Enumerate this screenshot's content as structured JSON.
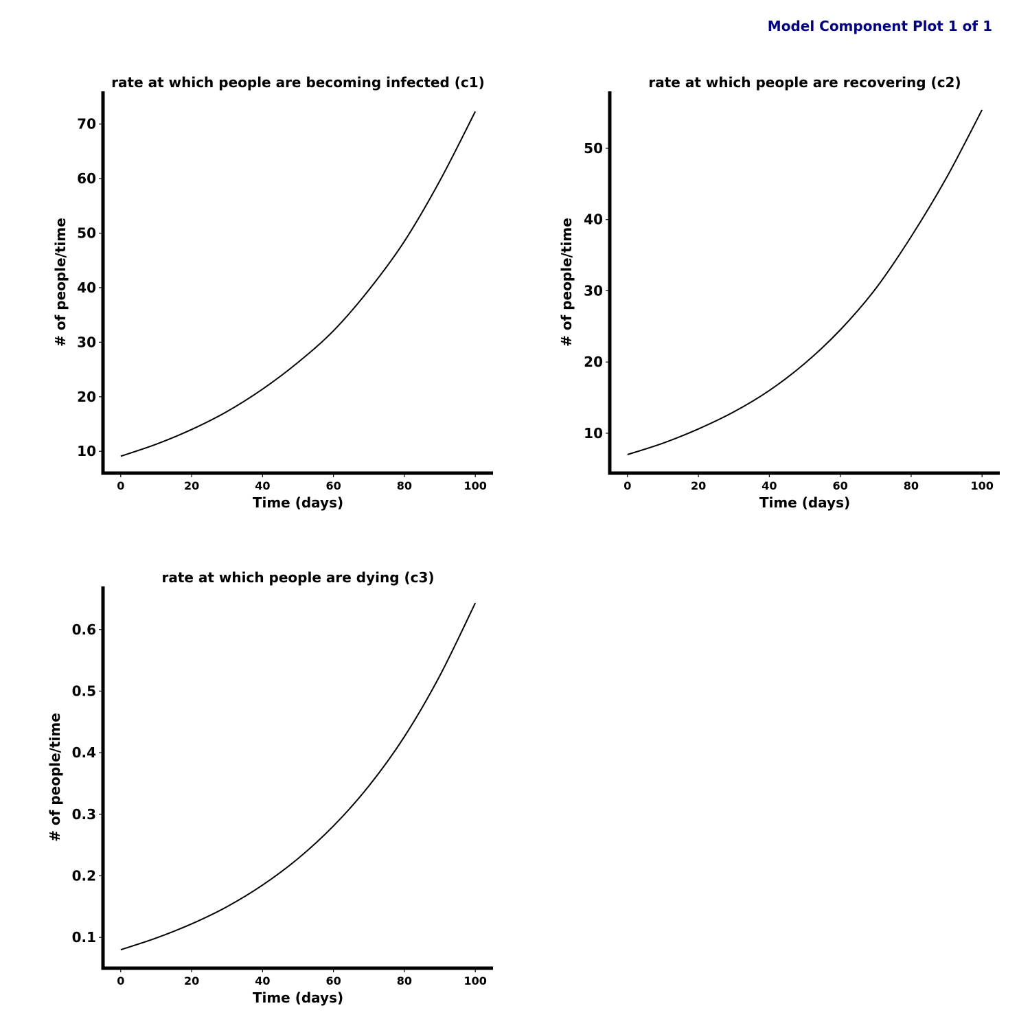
{
  "page": {
    "heading": "Model Component Plot 1 of 1",
    "heading_color": "#000080"
  },
  "chart_data": [
    {
      "type": "line",
      "title": "rate at which people are becoming infected (c1)",
      "xlabel": "Time (days)",
      "ylabel": "# of people/time",
      "xlim": [
        -5,
        105
      ],
      "ylim": [
        6,
        76
      ],
      "xticks": [
        0,
        20,
        40,
        60,
        80,
        100
      ],
      "yticks": [
        10,
        20,
        30,
        40,
        50,
        60,
        70
      ],
      "xtick_labels": [
        "0",
        "20",
        "40",
        "60",
        "80",
        "100"
      ],
      "ytick_labels": [
        "10",
        "20",
        "30",
        "40",
        "50",
        "60",
        "70"
      ],
      "grid": false,
      "legend": "none",
      "line_color": "#000000",
      "series": [
        {
          "x": [
            0,
            10,
            20,
            30,
            40,
            50,
            60,
            70,
            80,
            90,
            100
          ],
          "values": [
            9.1,
            11.3,
            14.0,
            17.3,
            21.4,
            26.3,
            32.1,
            39.6,
            48.5,
            59.6,
            72.3
          ]
        }
      ]
    },
    {
      "type": "line",
      "title": "rate at which people are recovering (c2)",
      "xlabel": "Time (days)",
      "ylabel": "# of people/time",
      "xlim": [
        -5,
        105
      ],
      "ylim": [
        4.4,
        58
      ],
      "xticks": [
        0,
        20,
        40,
        60,
        80,
        100
      ],
      "yticks": [
        10,
        20,
        30,
        40,
        50
      ],
      "xtick_labels": [
        "0",
        "20",
        "40",
        "60",
        "80",
        "100"
      ],
      "ytick_labels": [
        "10",
        "20",
        "30",
        "40",
        "50"
      ],
      "grid": false,
      "legend": "none",
      "line_color": "#000000",
      "series": [
        {
          "x": [
            0,
            10,
            20,
            30,
            40,
            50,
            60,
            70,
            80,
            90,
            100
          ],
          "values": [
            7.0,
            8.6,
            10.6,
            13.0,
            16.0,
            19.8,
            24.5,
            30.3,
            37.6,
            45.9,
            55.4
          ]
        }
      ]
    },
    {
      "type": "line",
      "title": "rate at which people are dying (c3)",
      "xlabel": "Time (days)",
      "ylabel": "# of people/time",
      "xlim": [
        -5,
        105
      ],
      "ylim": [
        0.05,
        0.67
      ],
      "xticks": [
        0,
        20,
        40,
        60,
        80,
        100
      ],
      "yticks": [
        0.1,
        0.2,
        0.3,
        0.4,
        0.5,
        0.6
      ],
      "xtick_labels": [
        "0",
        "20",
        "40",
        "60",
        "80",
        "100"
      ],
      "ytick_labels": [
        "0.1",
        "0.2",
        "0.3",
        "0.4",
        "0.5",
        "0.6"
      ],
      "grid": false,
      "legend": "none",
      "line_color": "#000000",
      "series": [
        {
          "x": [
            0,
            10,
            20,
            30,
            40,
            50,
            60,
            70,
            80,
            90,
            100
          ],
          "values": [
            0.08,
            0.099,
            0.122,
            0.15,
            0.185,
            0.228,
            0.281,
            0.346,
            0.426,
            0.525,
            0.643
          ]
        }
      ]
    }
  ]
}
